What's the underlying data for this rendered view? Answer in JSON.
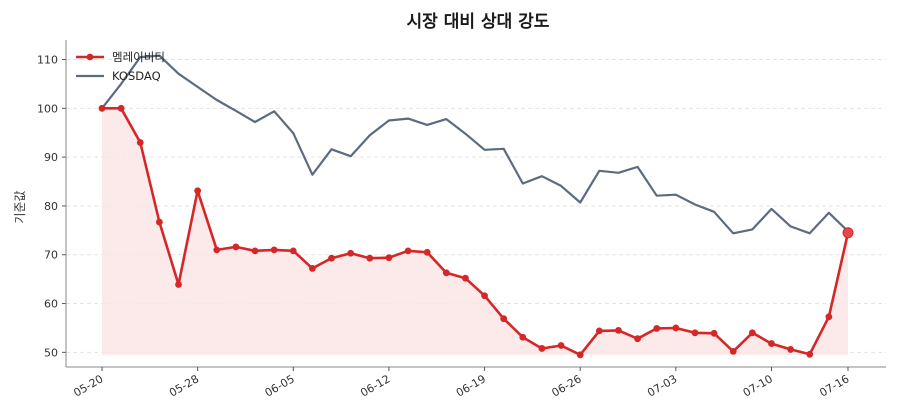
{
  "chart_data": {
    "type": "line",
    "title": "시장 대비 상대 강도",
    "xlabel": "",
    "ylabel": "기준값",
    "ylim": [
      47,
      114
    ],
    "yticks": [
      50,
      60,
      70,
      80,
      90,
      100,
      110
    ],
    "grid": "horizontal-dashed",
    "legend_position": "top-left",
    "xtick_labels": [
      "05-20",
      "05-28",
      "06-05",
      "06-12",
      "06-19",
      "06-26",
      "07-03",
      "07-10",
      "07-16"
    ],
    "xtick_index": [
      0,
      5,
      10,
      15,
      20,
      25,
      30,
      35,
      39
    ],
    "series": [
      {
        "name": "멤레이비티",
        "color": "#d62728",
        "fill": "#fbe5e5",
        "markers": true,
        "values": [
          100,
          100,
          93,
          76.7,
          63.9,
          83.1,
          71,
          71.6,
          70.8,
          71,
          70.8,
          67.2,
          69.3,
          70.3,
          69.3,
          69.4,
          70.8,
          70.5,
          66.3,
          65.2,
          61.6,
          56.9,
          53.1,
          50.8,
          51.4,
          49.5,
          54.4,
          54.5,
          52.8,
          54.9,
          55,
          54,
          53.9,
          50.2,
          54,
          51.8,
          50.6,
          49.6,
          57.3,
          74.5
        ]
      },
      {
        "name": "KOSDAQ",
        "color": "#5c6b80",
        "markers": false,
        "values": [
          100,
          105,
          110.5,
          110.8,
          107.1,
          104.4,
          101.7,
          99.5,
          97.2,
          99.4,
          94.9,
          86.4,
          91.6,
          90.2,
          94.5,
          97.5,
          97.9,
          96.6,
          97.8,
          94.8,
          91.5,
          91.7,
          84.6,
          86.1,
          84.1,
          80.7,
          87.2,
          86.8,
          88,
          82.1,
          82.3,
          80.3,
          78.8,
          74.4,
          75.2,
          79.4,
          75.8,
          74.4,
          78.6,
          74.8
        ]
      }
    ]
  }
}
